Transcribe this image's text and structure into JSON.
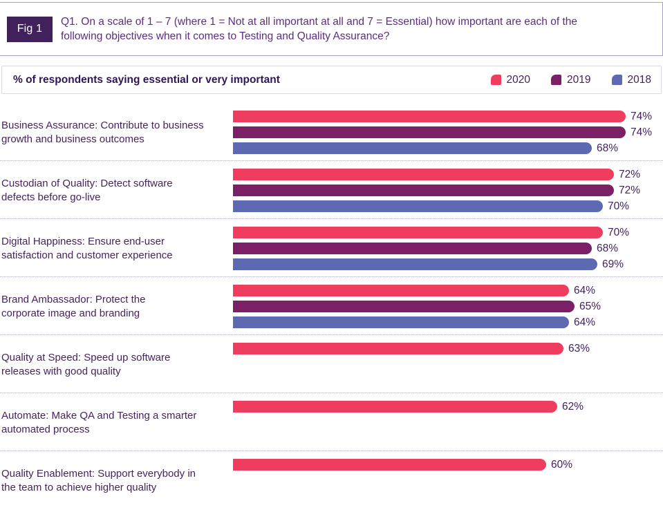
{
  "figure": {
    "tag": "Fig 1",
    "question_lines": [
      "Q1. On a scale of 1 – 7 (where 1 = Not at all important at all and 7 = Essential) how important are each of the",
      "following objectives when it comes to Testing and Quality Assurance?"
    ]
  },
  "legend": {
    "title": "% of respondents saying essential or very important",
    "items": [
      {
        "label": "2020",
        "color": "#ee3d5f"
      },
      {
        "label": "2019",
        "color": "#7b2066"
      },
      {
        "label": "2018",
        "color": "#5d69b1"
      }
    ]
  },
  "chart_data": {
    "type": "bar",
    "orientation": "horizontal",
    "unit": "%",
    "value_suffix": "%",
    "series_order": [
      "2020",
      "2019",
      "2018"
    ],
    "colors": {
      "2020": "#ee3d5f",
      "2019": "#7b2066",
      "2018": "#5d69b1"
    },
    "groups": [
      {
        "label_lines": [
          "Business Assurance: Contribute to business",
          "growth and business outcomes"
        ],
        "bars": [
          {
            "year": "2020",
            "value": 74
          },
          {
            "year": "2019",
            "value": 74
          },
          {
            "year": "2018",
            "value": 68
          }
        ]
      },
      {
        "label_lines": [
          "Custodian of Quality: Detect software",
          "defects before go-live"
        ],
        "bars": [
          {
            "year": "2020",
            "value": 72
          },
          {
            "year": "2019",
            "value": 72
          },
          {
            "year": "2018",
            "value": 70
          }
        ]
      },
      {
        "label_lines": [
          "Digital Happiness: Ensure end-user",
          "satisfaction and customer experience"
        ],
        "bars": [
          {
            "year": "2020",
            "value": 70
          },
          {
            "year": "2019",
            "value": 68
          },
          {
            "year": "2018",
            "value": 69
          }
        ]
      },
      {
        "label_lines": [
          "Brand Ambassador: Protect the",
          "corporate image and branding"
        ],
        "bars": [
          {
            "year": "2020",
            "value": 64
          },
          {
            "year": "2019",
            "value": 65
          },
          {
            "year": "2018",
            "value": 64
          }
        ]
      },
      {
        "label_lines": [
          "Quality at Speed: Speed up software",
          "releases with good quality"
        ],
        "bars": [
          {
            "year": "2020",
            "value": 63
          }
        ]
      },
      {
        "label_lines": [
          "Automate: Make QA and Testing a smarter",
          "automated process"
        ],
        "bars": [
          {
            "year": "2020",
            "value": 62
          }
        ]
      },
      {
        "label_lines": [
          "Quality Enablement: Support everybody in",
          "the team to achieve higher quality"
        ],
        "bars": [
          {
            "year": "2020",
            "value": 60
          }
        ]
      }
    ]
  }
}
